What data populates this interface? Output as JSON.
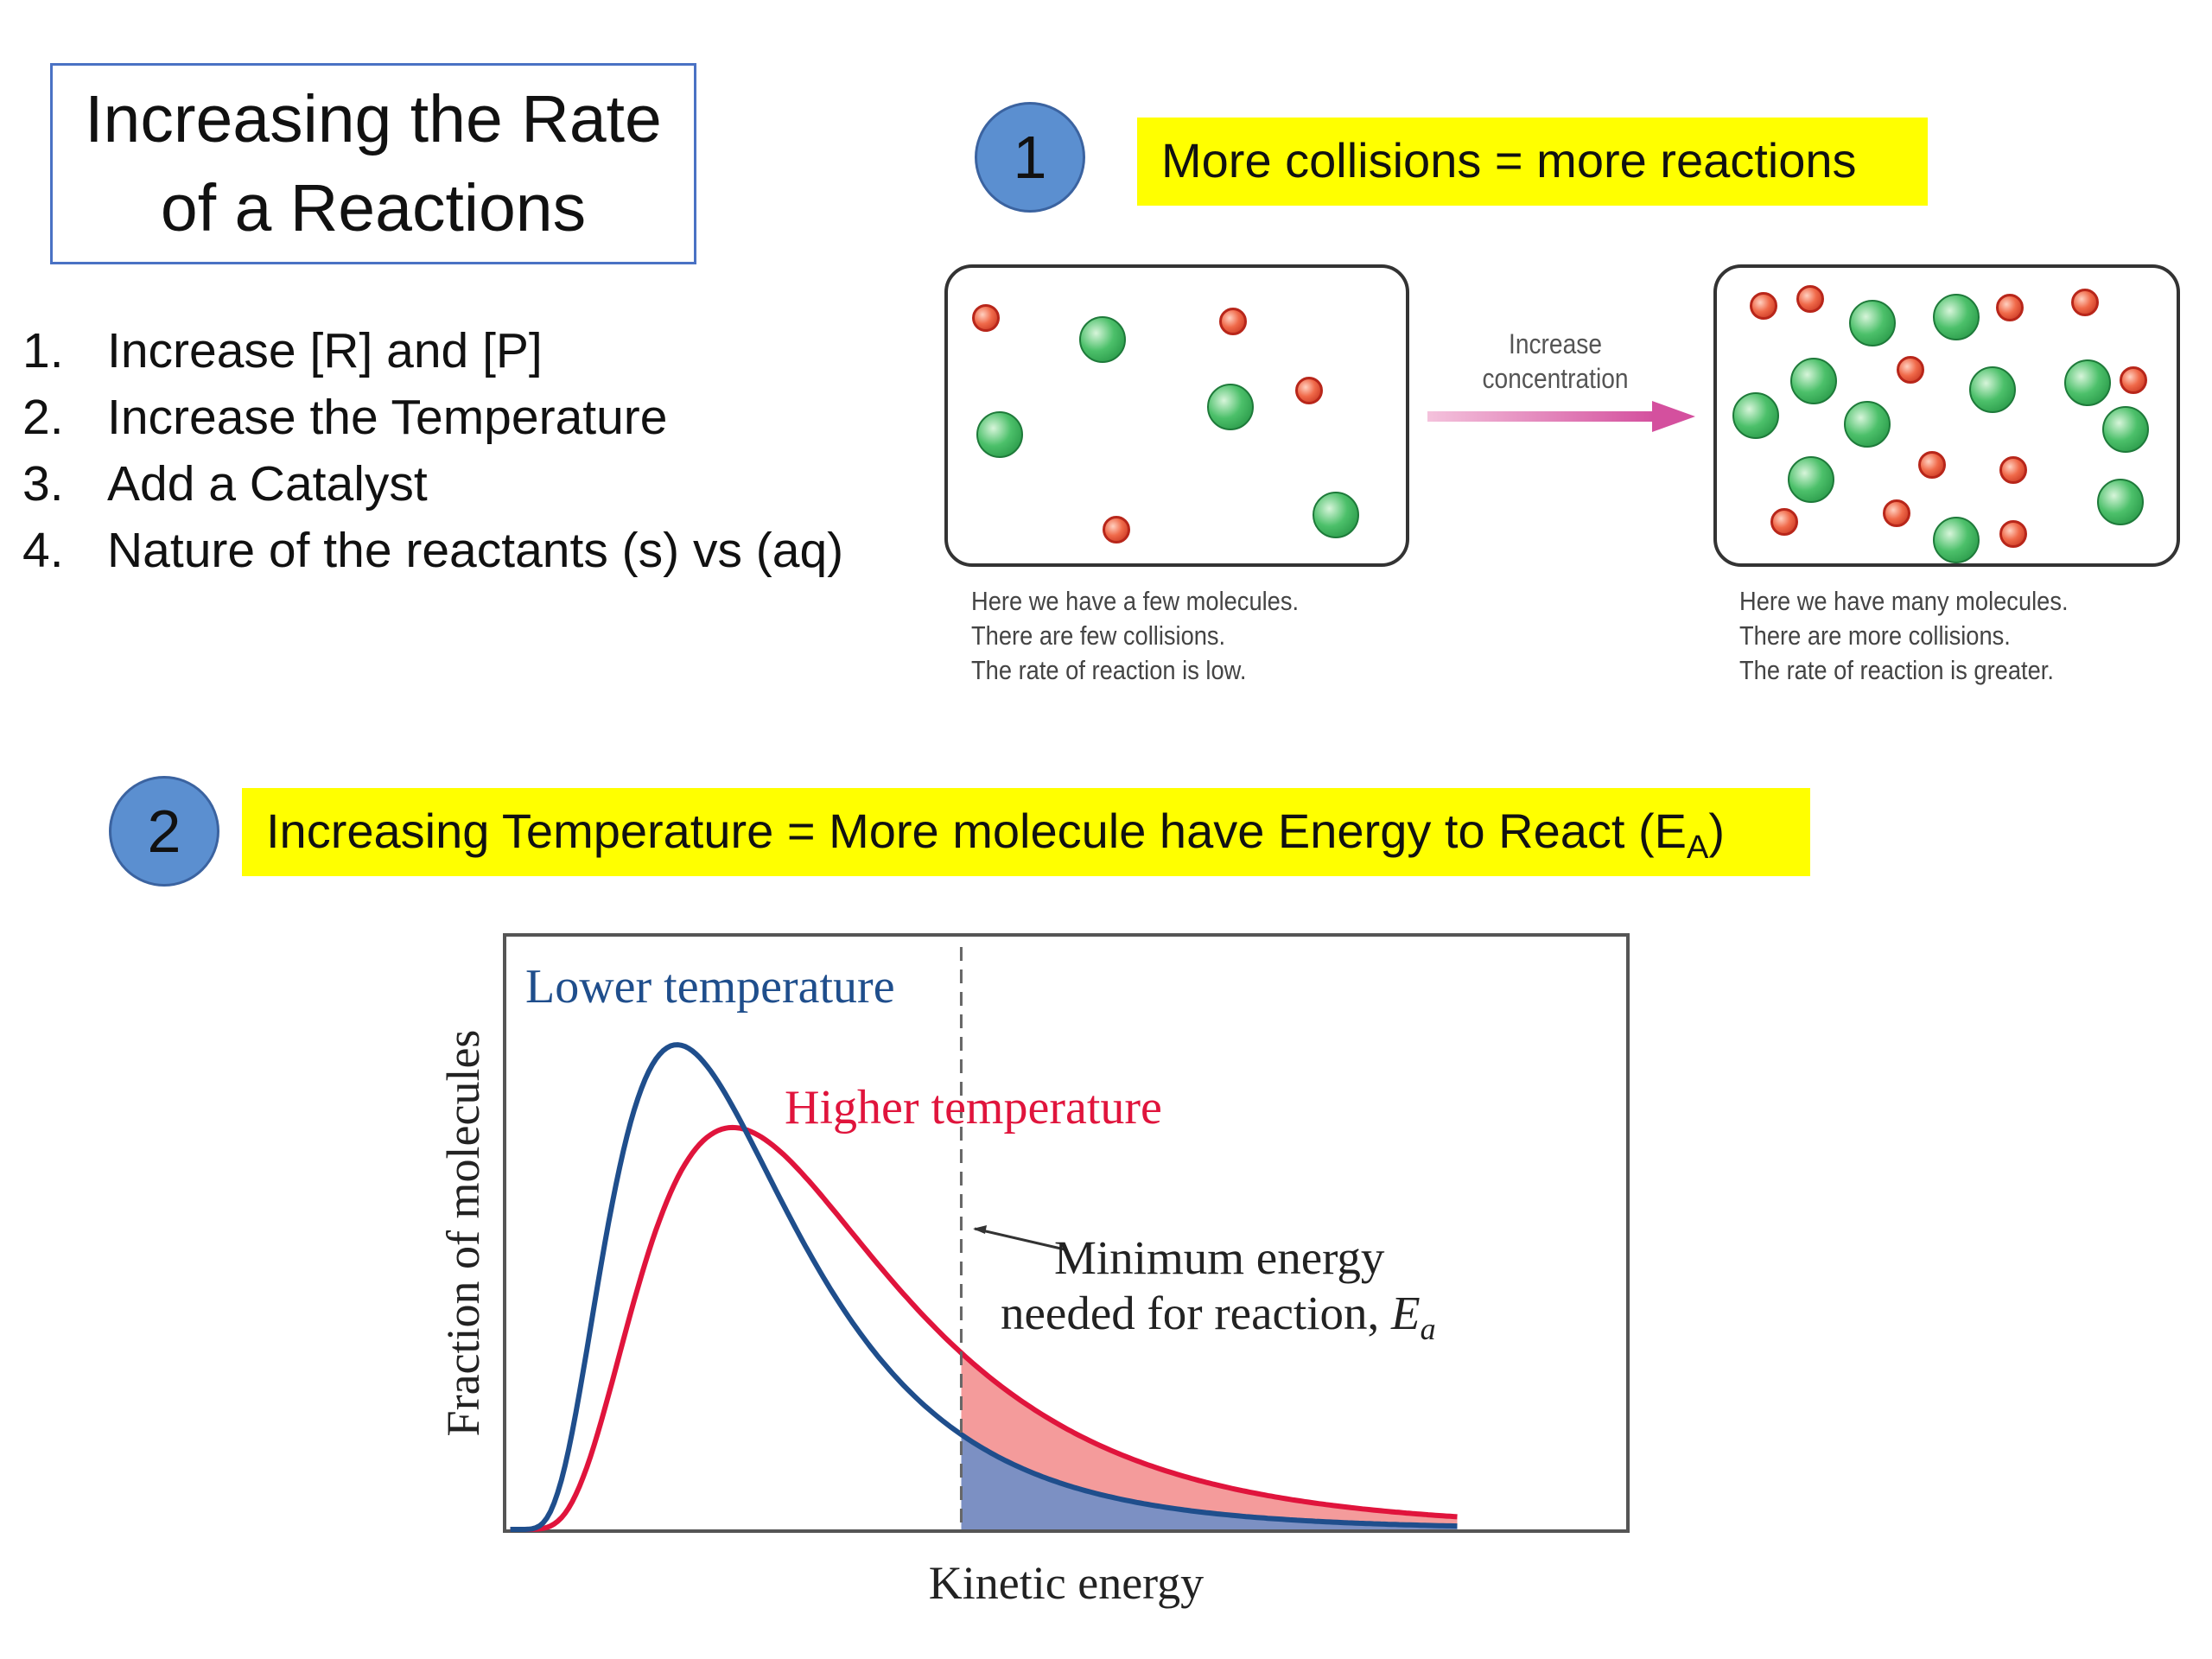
{
  "title": {
    "line1": "Increasing the Rate",
    "line2": "of a Reactions"
  },
  "factors": [
    {
      "num": "1.",
      "text": "Increase [R] and [P]"
    },
    {
      "num": "2.",
      "text": "Increase the Temperature"
    },
    {
      "num": "3.",
      "text": "Add a Catalyst"
    },
    {
      "num": "4.",
      "text": "Nature of the reactants  (s) vs (aq)"
    }
  ],
  "section1": {
    "badge": "1",
    "callout": "More collisions = more reactions",
    "arrow_label": {
      "line1": "Increase",
      "line2": "concentration"
    },
    "left_caption": [
      "Here we have a few molecules.",
      "There are few collisions.",
      "The rate of reaction is low."
    ],
    "right_caption": [
      "Here we have many molecules.",
      "There are more collisions.",
      "The rate of reaction is greater."
    ]
  },
  "section2": {
    "badge": "2",
    "callout_main": "Increasing Temperature = More molecule have Energy to React (E",
    "callout_sub": "A",
    "callout_end": ")"
  },
  "colors": {
    "lower": "#1f4e8c",
    "higher": "#e0143c",
    "badge": "#5b8fd0",
    "highlight": "#ffff00"
  },
  "chart_data": {
    "type": "line",
    "xlabel": "Kinetic energy",
    "ylabel": "Fraction of molecules",
    "series": [
      {
        "name": "Lower temperature",
        "color": "#1f4e8c",
        "peak_x": 0.15,
        "peak_y": 0.82
      },
      {
        "name": "Higher temperature",
        "color": "#e0143c",
        "peak_x": 0.2,
        "peak_y": 0.68
      }
    ],
    "threshold": {
      "x": 0.405,
      "label_line1": "Minimum energy",
      "label_line2": "needed for reaction, ",
      "label_symbol": "E",
      "label_sub": "a"
    },
    "xlim": [
      0,
      1
    ],
    "ylim": [
      0,
      1
    ],
    "grid": false
  }
}
